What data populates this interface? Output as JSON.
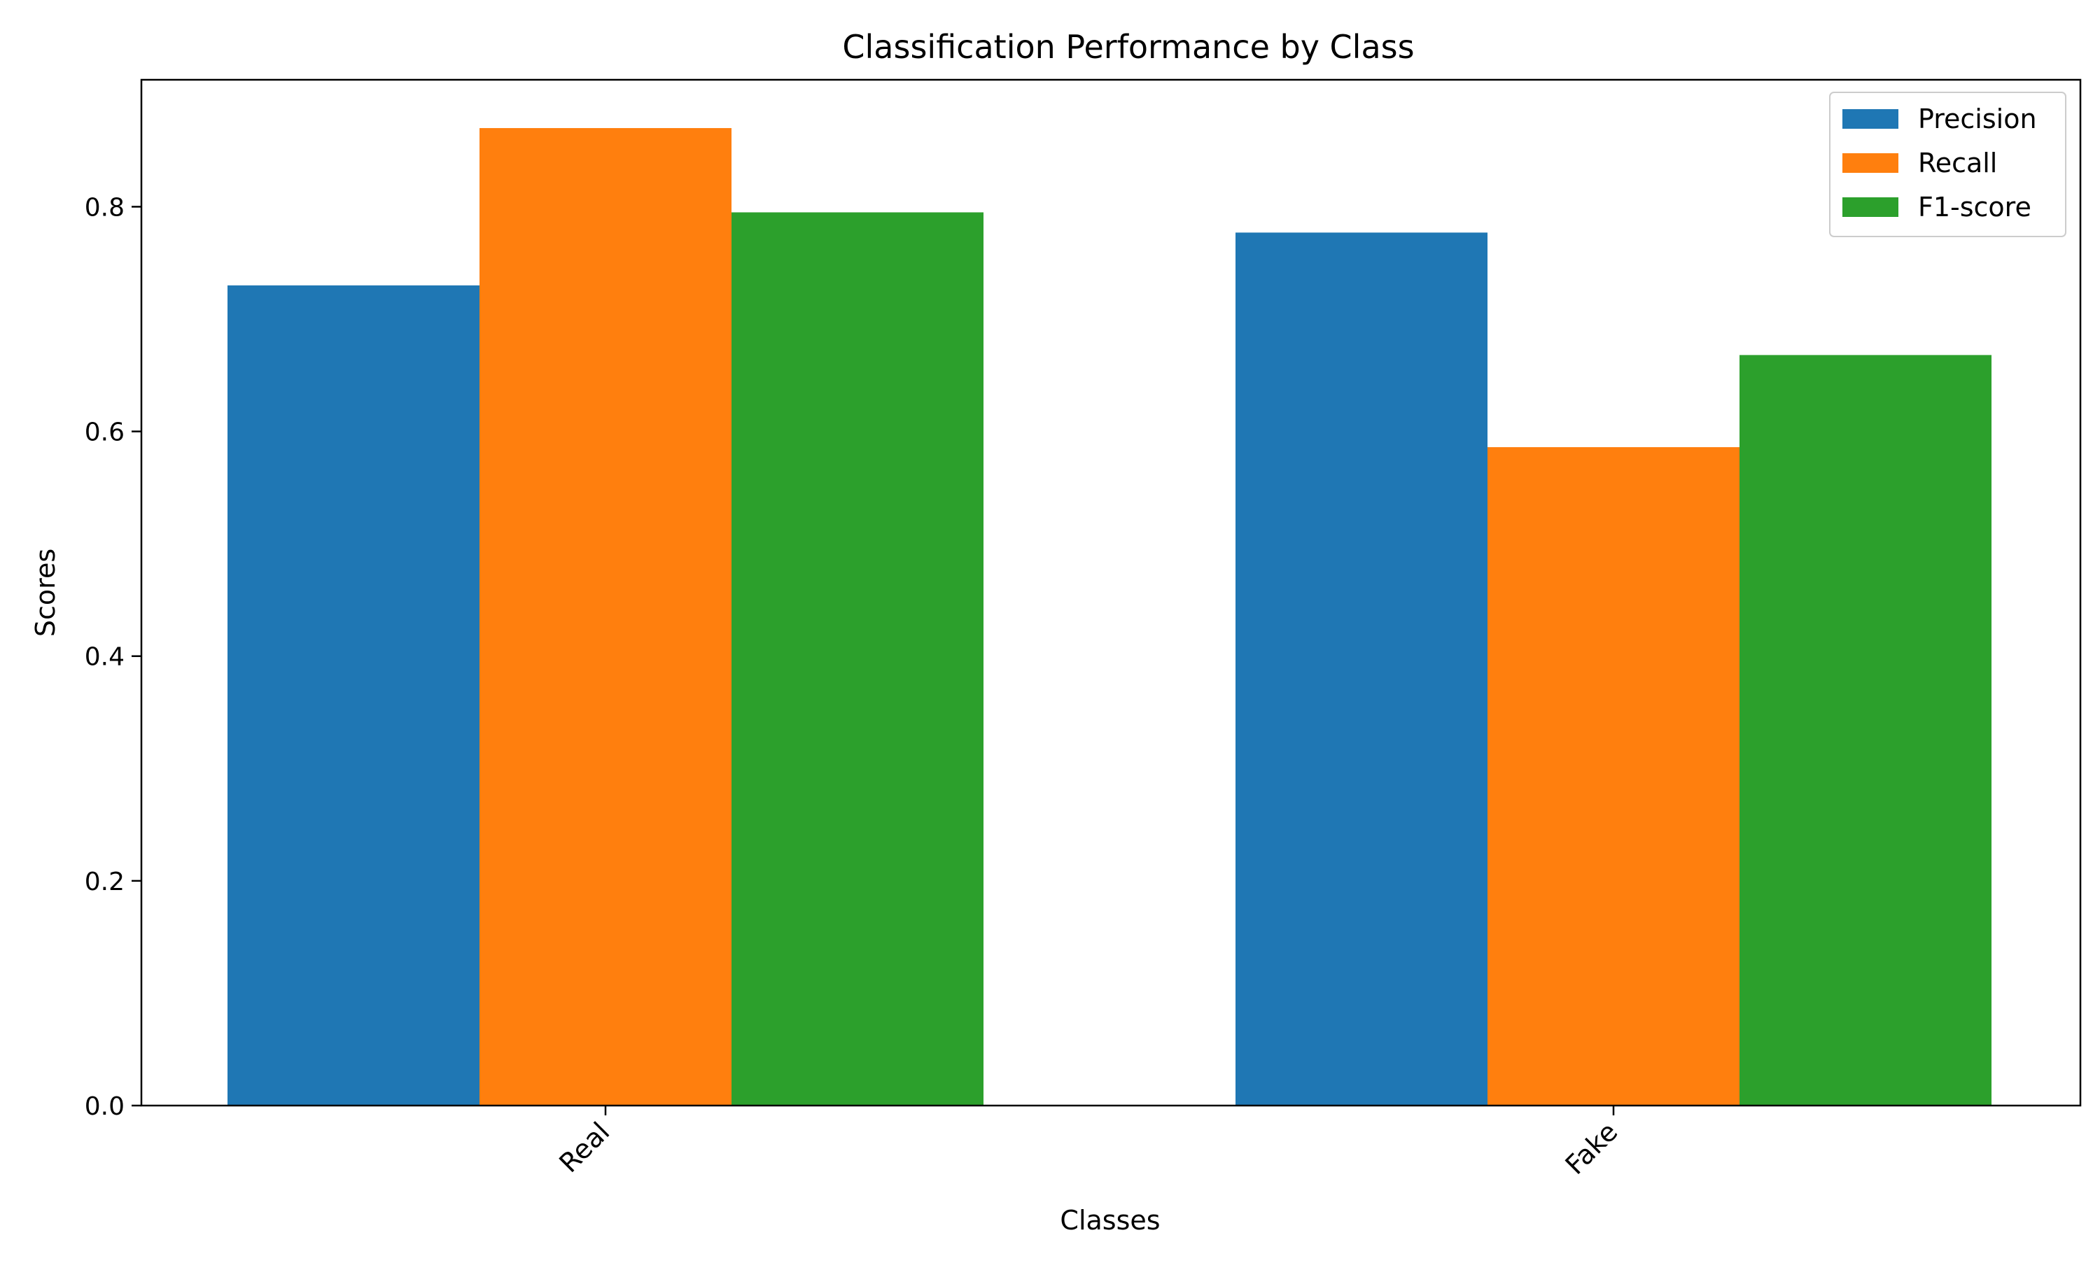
{
  "chart_data": {
    "type": "bar",
    "title": "Classification Performance by Class",
    "xlabel": "Classes",
    "ylabel": "Scores",
    "categories": [
      "Real",
      "Fake"
    ],
    "series": [
      {
        "name": "Precision",
        "color": "#1f77b4",
        "values": [
          0.73,
          0.777
        ]
      },
      {
        "name": "Recall",
        "color": "#ff7f0e",
        "values": [
          0.87,
          0.586
        ]
      },
      {
        "name": "F1-score",
        "color": "#2ca02c",
        "values": [
          0.795,
          0.668
        ]
      }
    ],
    "ylim": [
      0,
      0.913
    ],
    "yticks": [
      0.0,
      0.2,
      0.4,
      0.6,
      0.8
    ],
    "ytick_labels": [
      "0.0",
      "0.2",
      "0.4",
      "0.6",
      "0.8"
    ],
    "xtick_rotation_deg": -45,
    "legend_position": "top-right",
    "grid": false
  }
}
